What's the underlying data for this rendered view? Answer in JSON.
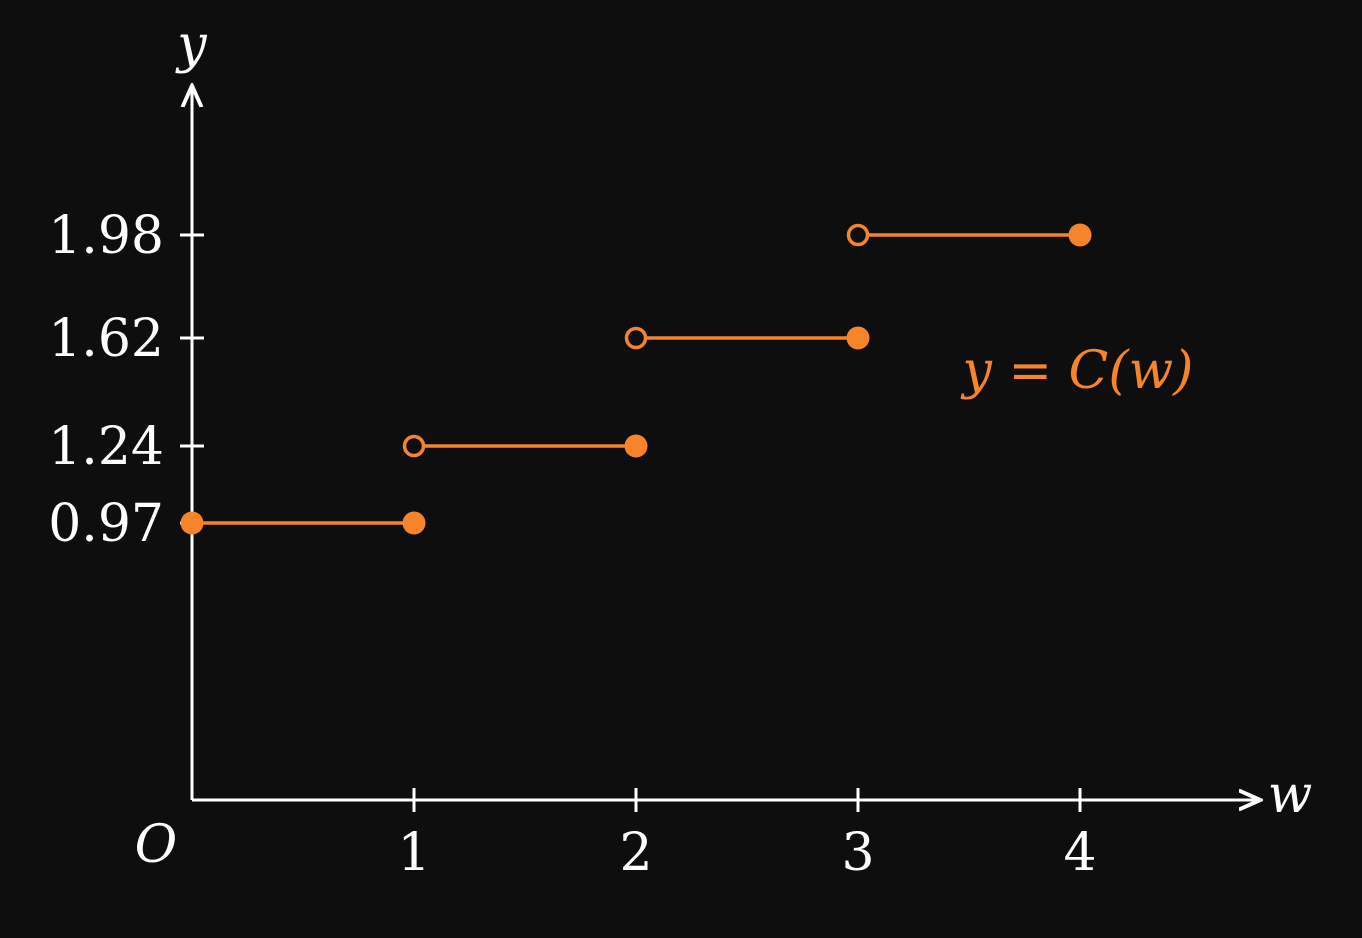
{
  "chart_data": {
    "type": "line",
    "title": "",
    "xlabel": "w",
    "ylabel": "y",
    "origin_label": "O",
    "function_label": "y = C(w)",
    "xlim": [
      0,
      4.8
    ],
    "x_ticks": [
      1,
      2,
      3,
      4
    ],
    "y_ticks": [
      0.97,
      1.24,
      1.62,
      1.98
    ],
    "series": [
      {
        "segments": [
          {
            "x_start": 0,
            "x_end": 1,
            "y": 0.97,
            "start_closed": true,
            "end_closed": true
          },
          {
            "x_start": 1,
            "x_end": 2,
            "y": 1.24,
            "start_closed": false,
            "end_closed": true
          },
          {
            "x_start": 2,
            "x_end": 3,
            "y": 1.62,
            "start_closed": false,
            "end_closed": true
          },
          {
            "x_start": 3,
            "x_end": 4,
            "y": 1.98,
            "start_closed": false,
            "end_closed": true
          }
        ]
      }
    ],
    "grid": false,
    "colors": {
      "background": "#0e0e0e",
      "axis": "#ffffff",
      "series": "#f5842b"
    }
  }
}
